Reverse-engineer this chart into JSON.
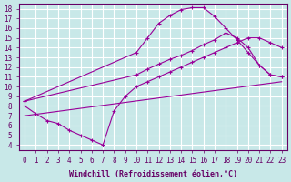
{
  "xlabel": "Windchill (Refroidissement éolien,°C)",
  "bg_color": "#c8e8e8",
  "grid_color": "#ffffff",
  "line_color": "#990099",
  "line1_x": [
    0,
    10,
    11,
    12,
    13,
    14,
    15,
    16,
    17,
    18,
    19,
    20,
    21,
    22,
    23
  ],
  "line1_y": [
    8.5,
    13.5,
    15.0,
    16.5,
    17.3,
    17.9,
    18.1,
    18.1,
    17.2,
    16.0,
    14.8,
    13.5,
    12.2,
    11.2,
    11.0
  ],
  "line2_x": [
    0,
    10,
    11,
    12,
    13,
    14,
    15,
    16,
    17,
    18,
    19,
    20,
    21,
    22,
    23
  ],
  "line2_y": [
    8.5,
    11.2,
    11.8,
    12.3,
    12.8,
    13.2,
    13.7,
    14.3,
    14.8,
    15.5,
    15.0,
    14.0,
    12.2,
    11.2,
    11.0
  ],
  "line3_x": [
    0,
    1,
    2,
    3,
    4,
    5,
    6,
    7,
    8,
    9,
    10,
    11,
    12,
    13,
    14,
    15,
    16,
    17,
    18,
    19,
    20,
    21,
    22,
    23
  ],
  "line3_y": [
    8.0,
    7.2,
    6.5,
    6.2,
    5.5,
    5.0,
    4.5,
    4.0,
    7.5,
    9.0,
    10.0,
    10.5,
    11.0,
    11.5,
    12.0,
    12.5,
    13.0,
    13.5,
    14.0,
    14.5,
    15.0,
    15.0,
    14.5,
    14.0
  ],
  "line4_x": [
    0,
    23
  ],
  "line4_y": [
    7.0,
    10.5
  ],
  "xlim": [
    0,
    23
  ],
  "ylim": [
    4,
    18
  ],
  "xticks": [
    0,
    1,
    2,
    3,
    4,
    5,
    6,
    7,
    8,
    9,
    10,
    11,
    12,
    13,
    14,
    15,
    16,
    17,
    18,
    19,
    20,
    21,
    22,
    23
  ],
  "yticks": [
    4,
    5,
    6,
    7,
    8,
    9,
    10,
    11,
    12,
    13,
    14,
    15,
    16,
    17,
    18
  ],
  "font_size": 5.5,
  "label_font_size": 6
}
